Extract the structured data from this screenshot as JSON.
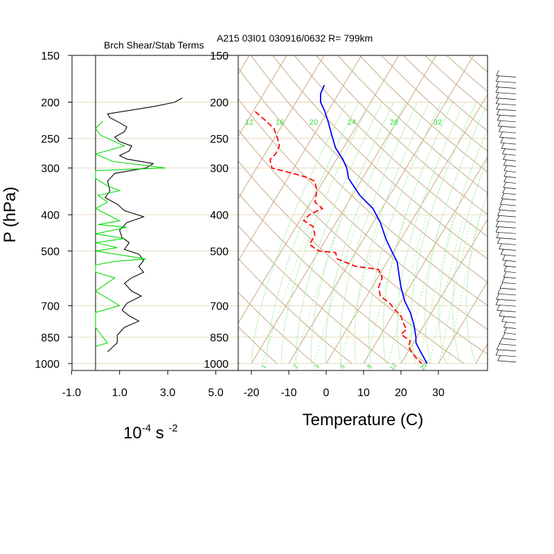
{
  "title_left": "Brch Shear/Stab Terms",
  "title_right": "A215 03I01 030916/0632 R= 799km",
  "ylabel": "P (hPa)",
  "units_left": "10",
  "units_exp1": "-4",
  "units_mid": " s ",
  "units_exp2": "-2",
  "xlabel_right": "Temperature (C)",
  "colors": {
    "temperature": "#0000ff",
    "dewpoint": "#ff0000",
    "shear": "#000000",
    "stability": "#00dd00",
    "isotherm_adiabat": "#c8a882",
    "mixing_ratio": "#33dd33"
  },
  "chart_data": [
    {
      "type": "line",
      "panel": "left",
      "title": "Brch Shear/Stab Terms",
      "ylabel": "P (hPa)",
      "xlabel": "10-4 s -2",
      "xlim": [
        -1.0,
        5.0
      ],
      "x_ticks": [
        "-1.0",
        "1.0",
        "3.0",
        "5.0"
      ],
      "y_ticks": [
        150,
        200,
        250,
        300,
        400,
        500,
        700,
        850,
        1000
      ],
      "y_scale": "log-pressure",
      "series": [
        {
          "color": "#000000",
          "points": [
            [
              3.6,
              195
            ],
            [
              3.3,
              200
            ],
            [
              2.5,
              205
            ],
            [
              1.5,
              210
            ],
            [
              0.5,
              215
            ],
            [
              0.6,
              220
            ],
            [
              1.0,
              227
            ],
            [
              1.3,
              233
            ],
            [
              1.2,
              240
            ],
            [
              0.8,
              248
            ],
            [
              1.0,
              255
            ],
            [
              1.5,
              262
            ],
            [
              1.4,
              270
            ],
            [
              1.0,
              278
            ],
            [
              1.3,
              284
            ],
            [
              2.4,
              292
            ],
            [
              2.1,
              300
            ],
            [
              0.8,
              310
            ],
            [
              0.5,
              325
            ],
            [
              0.6,
              345
            ],
            [
              0.4,
              360
            ],
            [
              0.9,
              375
            ],
            [
              1.2,
              390
            ],
            [
              2.0,
              405
            ],
            [
              1.3,
              420
            ],
            [
              1.0,
              440
            ],
            [
              1.1,
              460
            ],
            [
              1.4,
              475
            ],
            [
              1.2,
              495
            ],
            [
              1.8,
              510
            ],
            [
              2.0,
              530
            ],
            [
              1.8,
              550
            ],
            [
              2.0,
              570
            ],
            [
              1.5,
              590
            ],
            [
              1.2,
              610
            ],
            [
              1.5,
              640
            ],
            [
              1.9,
              660
            ],
            [
              1.3,
              690
            ],
            [
              1.1,
              720
            ],
            [
              1.4,
              745
            ],
            [
              1.8,
              770
            ],
            [
              1.2,
              800
            ],
            [
              0.9,
              840
            ],
            [
              0.9,
              880
            ],
            [
              0.5,
              930
            ]
          ]
        },
        {
          "color": "#00dd00",
          "points": [
            [
              0.3,
              225
            ],
            [
              0.0,
              235
            ],
            [
              0.2,
              245
            ],
            [
              1.2,
              262
            ],
            [
              0.0,
              275
            ],
            [
              0.7,
              288
            ],
            [
              2.9,
              300
            ],
            [
              1.0,
              303
            ],
            [
              0.0,
              305
            ],
            [
              0.0,
              320
            ],
            [
              0.5,
              335
            ],
            [
              1.0,
              345
            ],
            [
              0.1,
              355
            ],
            [
              0.5,
              370
            ],
            [
              0.0,
              385
            ],
            [
              1.0,
              415
            ],
            [
              0.1,
              425
            ],
            [
              1.3,
              432
            ],
            [
              0.0,
              450
            ],
            [
              1.2,
              463
            ],
            [
              0.0,
              475
            ],
            [
              0.9,
              490
            ],
            [
              0.0,
              500
            ],
            [
              2.1,
              525
            ],
            [
              0.8,
              533
            ],
            [
              0.0,
              545
            ],
            [
              0.0,
              570
            ],
            [
              0.8,
              590
            ],
            [
              0.0,
              640
            ],
            [
              1.0,
              700
            ],
            [
              0.0,
              730
            ],
            [
              0.0,
              800
            ],
            [
              0.3,
              850
            ],
            [
              0.5,
              880
            ],
            [
              0.0,
              900
            ]
          ]
        }
      ]
    },
    {
      "type": "line",
      "panel": "right",
      "title": "A215 03I01 030916/0632 R= 799km",
      "xlabel": "Temperature (C)",
      "xlim": [
        -24,
        42
      ],
      "x_ticks": [
        "-20",
        "-10",
        "0",
        "10",
        "20",
        "30"
      ],
      "y_ticks": [
        150,
        200,
        250,
        300,
        400,
        500,
        700,
        850,
        1000
      ],
      "y_scale": "log-pressure",
      "mixing_ratio_labels_top": [
        "12",
        "16",
        "20",
        "24",
        "28",
        "32"
      ],
      "mixing_ratio_labels_bottom": [
        "1",
        "2",
        "3",
        "5",
        "8",
        "12",
        "20"
      ],
      "series": [
        {
          "name": "Temperature",
          "color": "#0000ff",
          "points": [
            [
              -0.5,
              180
            ],
            [
              -1.5,
              190
            ],
            [
              -1.5,
              200
            ],
            [
              -0.5,
              210
            ],
            [
              0.5,
              225
            ],
            [
              1.5,
              245
            ],
            [
              2.5,
              265
            ],
            [
              4.5,
              285
            ],
            [
              5.5,
              300
            ],
            [
              6.0,
              320
            ],
            [
              9.0,
              355
            ],
            [
              12.5,
              385
            ],
            [
              14.5,
              420
            ],
            [
              16.0,
              465
            ],
            [
              17.5,
              500
            ],
            [
              19.0,
              535
            ],
            [
              19.5,
              580
            ],
            [
              20.0,
              625
            ],
            [
              21.0,
              680
            ],
            [
              22.5,
              730
            ],
            [
              23.5,
              790
            ],
            [
              24.0,
              850
            ],
            [
              24.0,
              880
            ],
            [
              25.5,
              940
            ],
            [
              27.0,
              1000
            ]
          ]
        },
        {
          "name": "Dewpoint",
          "color": "#ff0000",
          "dash": true,
          "points": [
            [
              -19.0,
              212
            ],
            [
              -16.0,
              225
            ],
            [
              -14.0,
              235
            ],
            [
              -13.0,
              250
            ],
            [
              -12.5,
              262
            ],
            [
              -13.5,
              275
            ],
            [
              -15.0,
              285
            ],
            [
              -14.5,
              300
            ],
            [
              -9.0,
              310
            ],
            [
              -5.0,
              318
            ],
            [
              -3.0,
              326
            ],
            [
              -2.5,
              345
            ],
            [
              -3.0,
              370
            ],
            [
              -1.0,
              385
            ],
            [
              -4.5,
              400
            ],
            [
              -6.0,
              415
            ],
            [
              -3.5,
              430
            ],
            [
              -3.0,
              455
            ],
            [
              -4.5,
              480
            ],
            [
              -2.0,
              500
            ],
            [
              2.5,
              505
            ],
            [
              3.0,
              525
            ],
            [
              8.0,
              550
            ],
            [
              14.0,
              560
            ],
            [
              15.0,
              590
            ],
            [
              14.0,
              625
            ],
            [
              14.5,
              660
            ],
            [
              17.0,
              690
            ],
            [
              18.5,
              720
            ],
            [
              20.0,
              745
            ],
            [
              20.5,
              775
            ],
            [
              21.5,
              810
            ],
            [
              20.0,
              835
            ],
            [
              22.5,
              870
            ],
            [
              22.0,
              900
            ],
            [
              23.0,
              935
            ],
            [
              24.0,
              965
            ],
            [
              25.5,
              1000
            ]
          ]
        }
      ]
    }
  ]
}
